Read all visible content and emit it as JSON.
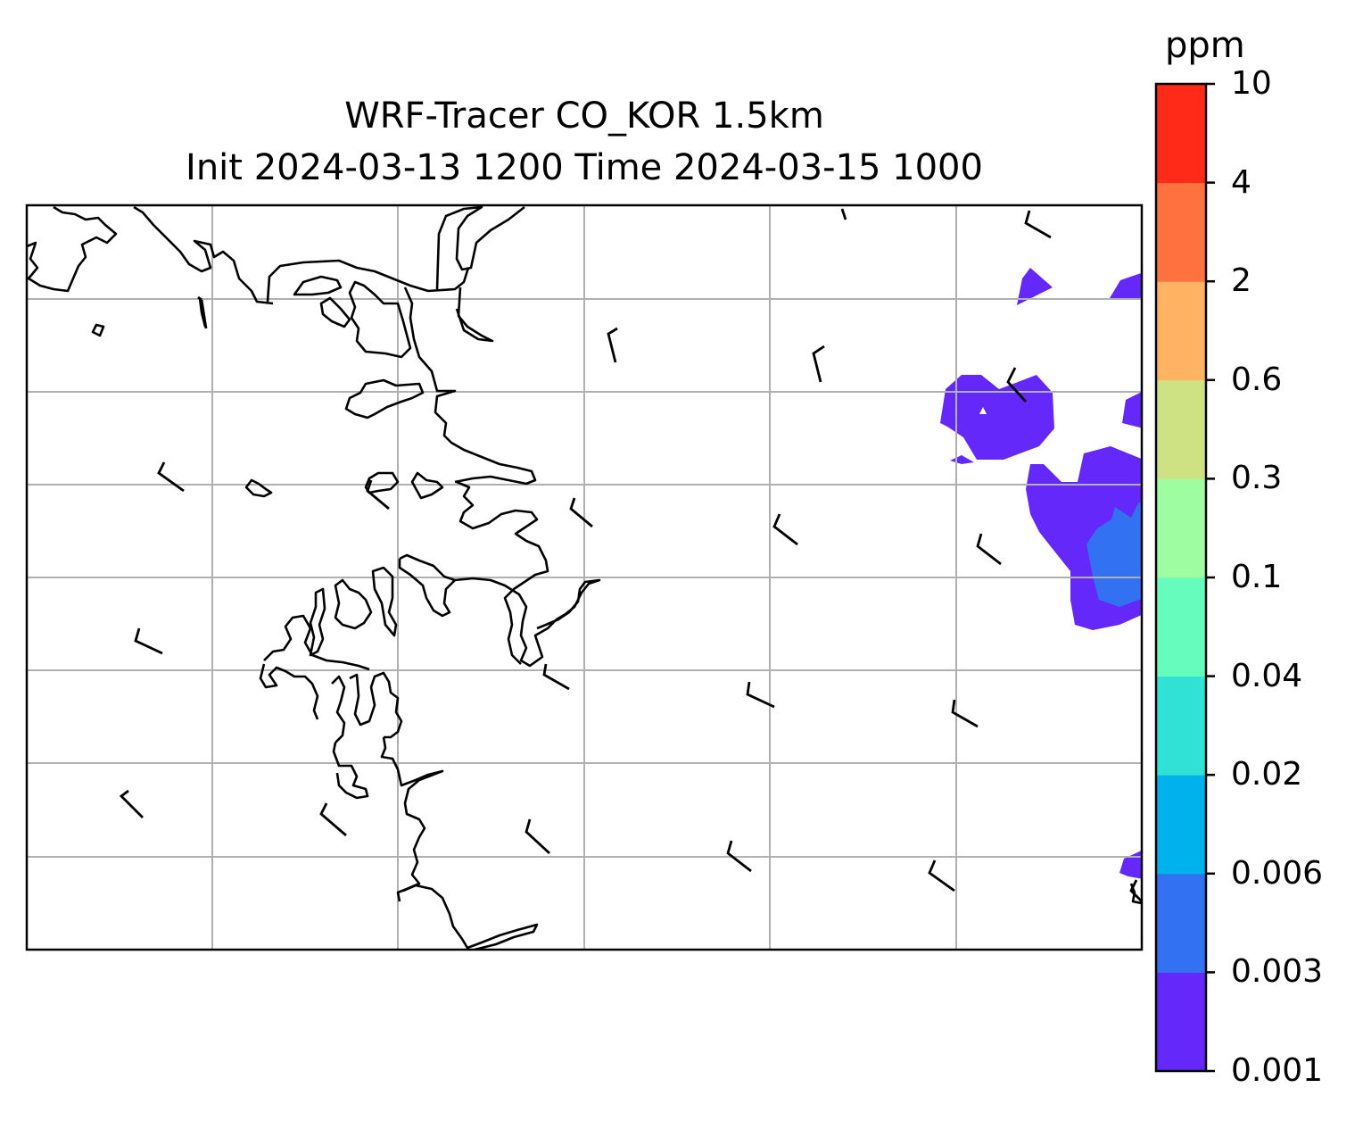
{
  "title": {
    "line1": "WRF-Tracer CO_KOR 1.5km",
    "line2": "Init 2024-03-13 1200 Time 2024-03-15 1000"
  },
  "colorbar": {
    "unit": "ppm",
    "levels": [
      "0.001",
      "0.003",
      "0.006",
      "0.02",
      "0.04",
      "0.1",
      "0.3",
      "0.6",
      "2",
      "4",
      "10"
    ],
    "colors": [
      "#6428fa",
      "#3271f2",
      "#00b2ec",
      "#30e1d6",
      "#66fcbd",
      "#9dfda0",
      "#cfe283",
      "#ffb261",
      "#ff7240",
      "#ff2a17"
    ]
  },
  "map": {
    "gridline_color": "#b0b0b0",
    "coastline_color": "#000000",
    "vector_color": "#000000"
  }
}
